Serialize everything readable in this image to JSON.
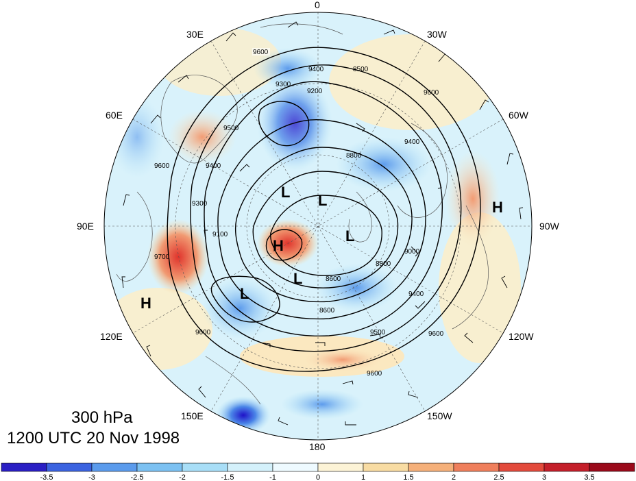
{
  "title": {
    "level": "300 hPa",
    "valid_time": "1200 UTC 20 Nov 1998"
  },
  "longitude_labels": {
    "top": "0",
    "top_right": "30W",
    "upper_right": "60W",
    "right": "90W",
    "lower_right": "120W",
    "bottom_right": "150W",
    "bottom": "180",
    "bottom_left": "150E",
    "lower_left": "120E",
    "left": "90E",
    "upper_left": "60E",
    "top_left": "30E"
  },
  "pressure_systems": [
    {
      "type": "H",
      "label": "H"
    },
    {
      "type": "L",
      "label": "L"
    },
    {
      "type": "L",
      "label": "L"
    },
    {
      "type": "L",
      "label": "L"
    },
    {
      "type": "L",
      "label": "L"
    },
    {
      "type": "L",
      "label": "L"
    },
    {
      "type": "H",
      "label": "H"
    },
    {
      "type": "H",
      "label": "H"
    }
  ],
  "contour_labels": [
    "9600",
    "9400",
    "9500",
    "9300",
    "9200",
    "9000",
    "8800",
    "8600",
    "8500",
    "9100",
    "9700"
  ],
  "colorbar": {
    "ticks": [
      "-3.5",
      "-3",
      "-2.5",
      "-2",
      "-1.5",
      "-1",
      "0",
      "1",
      "1.5",
      "2",
      "2.5",
      "3",
      "3.5"
    ],
    "colors": [
      "#2a1fc4",
      "#3b63e0",
      "#5b9bec",
      "#7cc1f2",
      "#a8def7",
      "#d4f1fb",
      "#eefaff",
      "#fcf3d6",
      "#f8dca3",
      "#f5b07a",
      "#ef7f5c",
      "#e34a3c",
      "#c41f2a",
      "#9a0a1a"
    ]
  }
}
